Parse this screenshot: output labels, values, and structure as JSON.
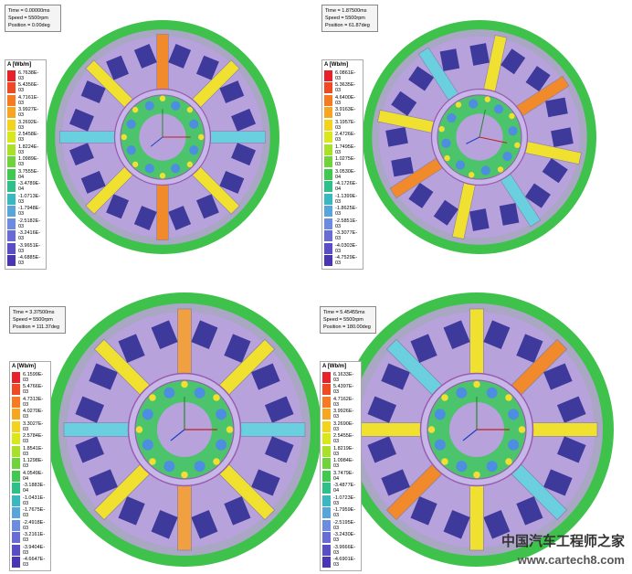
{
  "panels": [
    {
      "info": [
        "Time = 0.00000ms",
        "Speed = 5500rpm",
        "Position = 0.00deg"
      ],
      "legend_title": "A [Wb/m]",
      "legend": [
        "6.7638E-03",
        "5.4356E-03",
        "4.7161E-03",
        "3.9927E-03",
        "3.2692E-03",
        "2.5458E-03",
        "1.8224E-03",
        "1.0989E-03",
        "3.7555E-04",
        "-3.4789E-04",
        "-1.0713E-03",
        "-1.7948E-03",
        "-2.5182E-03",
        "-3.2416E-03",
        "-3.9651E-03",
        "-4.6885E-03"
      ]
    },
    {
      "info": [
        "Time = 1.87500ms",
        "Speed = 5500rpm",
        "Position = 61.87deg"
      ],
      "legend_title": "A [Wb/m]",
      "legend": [
        "6.0861E-03",
        "5.3635E-03",
        "4.6400E-03",
        "3.9163E-03",
        "3.1957E-03",
        "2.4726E-03",
        "1.7495E-03",
        "1.0275E-03",
        "3.0530E-04",
        "-4.1726E-04",
        "-1.1399E-03",
        "-1.8625E-03",
        "-2.5851E-03",
        "-3.3077E-03",
        "-4.0303E-03",
        "-4.7529E-03"
      ]
    },
    {
      "info": [
        "Time = 3.37500ms",
        "Speed = 5500rpm",
        "Position = 111.37deg"
      ],
      "legend_title": "A [Wb/m]",
      "legend": [
        "6.1599E-03",
        "5.4766E-03",
        "4.7313E-03",
        "4.0270E-03",
        "3.3027E-03",
        "2.5784E-03",
        "1.8541E-03",
        "1.1298E-03",
        "4.0549E-04",
        "-3.1883E-04",
        "-1.0431E-03",
        "-1.7675E-03",
        "-2.4918E-03",
        "-3.2161E-03",
        "-3.9404E-03",
        "-4.6647E-03"
      ]
    },
    {
      "info": [
        "Time = 5.45455ms",
        "Speed = 5500rpm",
        "Position = 180.00deg"
      ],
      "legend_title": "A [Wb/m]",
      "legend": [
        "6.1633E-03",
        "5.4397E-03",
        "4.7162E-03",
        "3.9926E-03",
        "3.2690E-03",
        "2.5455E-03",
        "1.8219E-03",
        "1.0984E-03",
        "3.7479E-04",
        "-3.4877E-04",
        "-1.0723E-03",
        "-1.7959E-03",
        "-2.5195E-03",
        "-3.2430E-03",
        "-3.9666E-03",
        "-4.6901E-03"
      ]
    }
  ],
  "watermark": {
    "title": "中国汽车工程师之家",
    "url": "www.cartech8.com"
  }
}
